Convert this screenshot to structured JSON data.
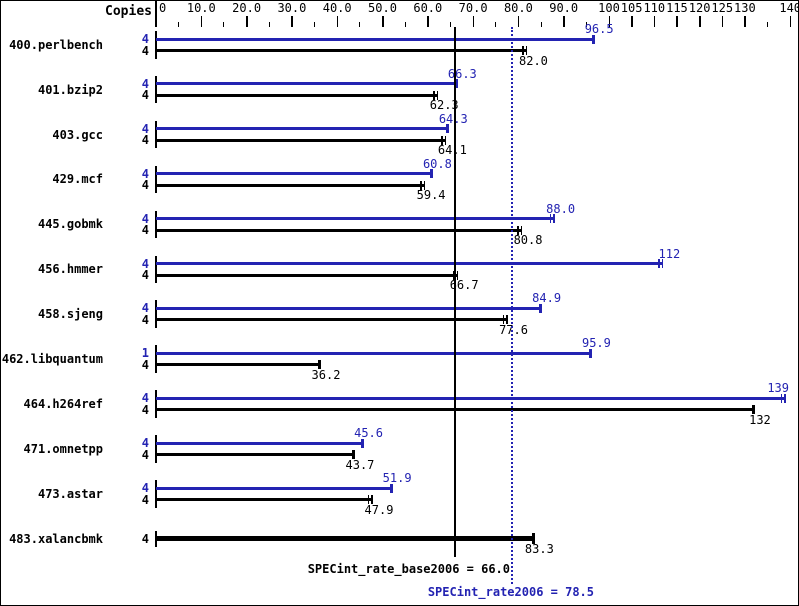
{
  "chart_data": {
    "type": "bar",
    "orientation": "horizontal",
    "copies_header": "Copies",
    "accent_color": "#2323b2",
    "base_color": "#000000",
    "axis": {
      "min": 0,
      "max": 140,
      "major_ticks": [
        {
          "v": 0,
          "label": "0"
        },
        {
          "v": 10,
          "label": "10.0"
        },
        {
          "v": 20,
          "label": "20.0"
        },
        {
          "v": 30,
          "label": "30.0"
        },
        {
          "v": 40,
          "label": "40.0"
        },
        {
          "v": 50,
          "label": "50.0"
        },
        {
          "v": 60,
          "label": "60.0"
        },
        {
          "v": 70,
          "label": "70.0"
        },
        {
          "v": 80,
          "label": "80.0"
        },
        {
          "v": 90,
          "label": "90.0"
        },
        {
          "v": 100,
          "label": "100"
        },
        {
          "v": 105,
          "label": "105"
        },
        {
          "v": 110,
          "label": "110"
        },
        {
          "v": 115,
          "label": "115"
        },
        {
          "v": 120,
          "label": "120"
        },
        {
          "v": 125,
          "label": "125"
        },
        {
          "v": 130,
          "label": "130"
        },
        {
          "v": 140,
          "label": "140"
        }
      ],
      "minor_ticks": [
        5,
        15,
        25,
        35,
        45,
        55,
        65,
        75,
        85,
        95,
        135
      ]
    },
    "benchmarks": [
      {
        "name": "400.perlbench",
        "runs": [
          {
            "series": "peak",
            "copies": "4",
            "value": 96.5,
            "label": "96.5",
            "marker": "cap"
          },
          {
            "series": "base",
            "copies": "4",
            "value": 82.0,
            "label": "82.0",
            "marker": "ticks"
          }
        ]
      },
      {
        "name": "401.bzip2",
        "runs": [
          {
            "series": "peak",
            "copies": "4",
            "value": 66.3,
            "label": "66.3",
            "marker": "cap"
          },
          {
            "series": "base",
            "copies": "4",
            "value": 62.3,
            "label": "62.3",
            "marker": "ticks"
          }
        ]
      },
      {
        "name": "403.gcc",
        "runs": [
          {
            "series": "peak",
            "copies": "4",
            "value": 64.3,
            "label": "64.3",
            "marker": "cap"
          },
          {
            "series": "base",
            "copies": "4",
            "value": 64.1,
            "label": "64.1",
            "marker": "ticks"
          }
        ]
      },
      {
        "name": "429.mcf",
        "runs": [
          {
            "series": "peak",
            "copies": "4",
            "value": 60.8,
            "label": "60.8",
            "marker": "cap"
          },
          {
            "series": "base",
            "copies": "4",
            "value": 59.4,
            "label": "59.4",
            "marker": "ticks"
          }
        ]
      },
      {
        "name": "445.gobmk",
        "runs": [
          {
            "series": "peak",
            "copies": "4",
            "value": 88.0,
            "label": "88.0",
            "marker": "ticks"
          },
          {
            "series": "base",
            "copies": "4",
            "value": 80.8,
            "label": "80.8",
            "marker": "ticks"
          }
        ]
      },
      {
        "name": "456.hmmer",
        "runs": [
          {
            "series": "peak",
            "copies": "4",
            "value": 112,
            "label": "112",
            "marker": "ticks"
          },
          {
            "series": "base",
            "copies": "4",
            "value": 66.7,
            "label": "66.7",
            "marker": "ticks"
          }
        ]
      },
      {
        "name": "458.sjeng",
        "runs": [
          {
            "series": "peak",
            "copies": "4",
            "value": 84.9,
            "label": "84.9",
            "marker": "cap"
          },
          {
            "series": "base",
            "copies": "4",
            "value": 77.6,
            "label": "77.6",
            "marker": "ticks"
          }
        ]
      },
      {
        "name": "462.libquantum",
        "runs": [
          {
            "series": "peak",
            "copies": "1",
            "value": 95.9,
            "label": "95.9",
            "marker": "cap"
          },
          {
            "series": "base",
            "copies": "4",
            "value": 36.2,
            "label": "36.2",
            "marker": "cap"
          }
        ]
      },
      {
        "name": "464.h264ref",
        "runs": [
          {
            "series": "peak",
            "copies": "4",
            "value": 139,
            "label": "139",
            "marker": "ticks"
          },
          {
            "series": "base",
            "copies": "4",
            "value": 132,
            "label": "132",
            "marker": "cap"
          }
        ]
      },
      {
        "name": "471.omnetpp",
        "runs": [
          {
            "series": "peak",
            "copies": "4",
            "value": 45.6,
            "label": "45.6",
            "marker": "cap"
          },
          {
            "series": "base",
            "copies": "4",
            "value": 43.7,
            "label": "43.7",
            "marker": "cap"
          }
        ]
      },
      {
        "name": "473.astar",
        "runs": [
          {
            "series": "peak",
            "copies": "4",
            "value": 51.9,
            "label": "51.9",
            "marker": "cap"
          },
          {
            "series": "base",
            "copies": "4",
            "value": 47.9,
            "label": "47.9",
            "marker": "ticks"
          }
        ]
      },
      {
        "name": "483.xalancbmk",
        "runs": [
          {
            "series": "base",
            "copies": "4",
            "value": 83.3,
            "label": "83.3",
            "marker": "cap",
            "bold": true
          }
        ]
      }
    ],
    "reference_lines": [
      {
        "name": "SPECint_rate_base2006",
        "value": 66.0,
        "label": "SPECint_rate_base2006 = 66.0",
        "style": "solid",
        "color": "#000000"
      },
      {
        "name": "SPECint_rate2006",
        "value": 78.5,
        "label": "SPECint_rate2006 = 78.5",
        "style": "dotted",
        "color": "#2323b2"
      }
    ]
  }
}
